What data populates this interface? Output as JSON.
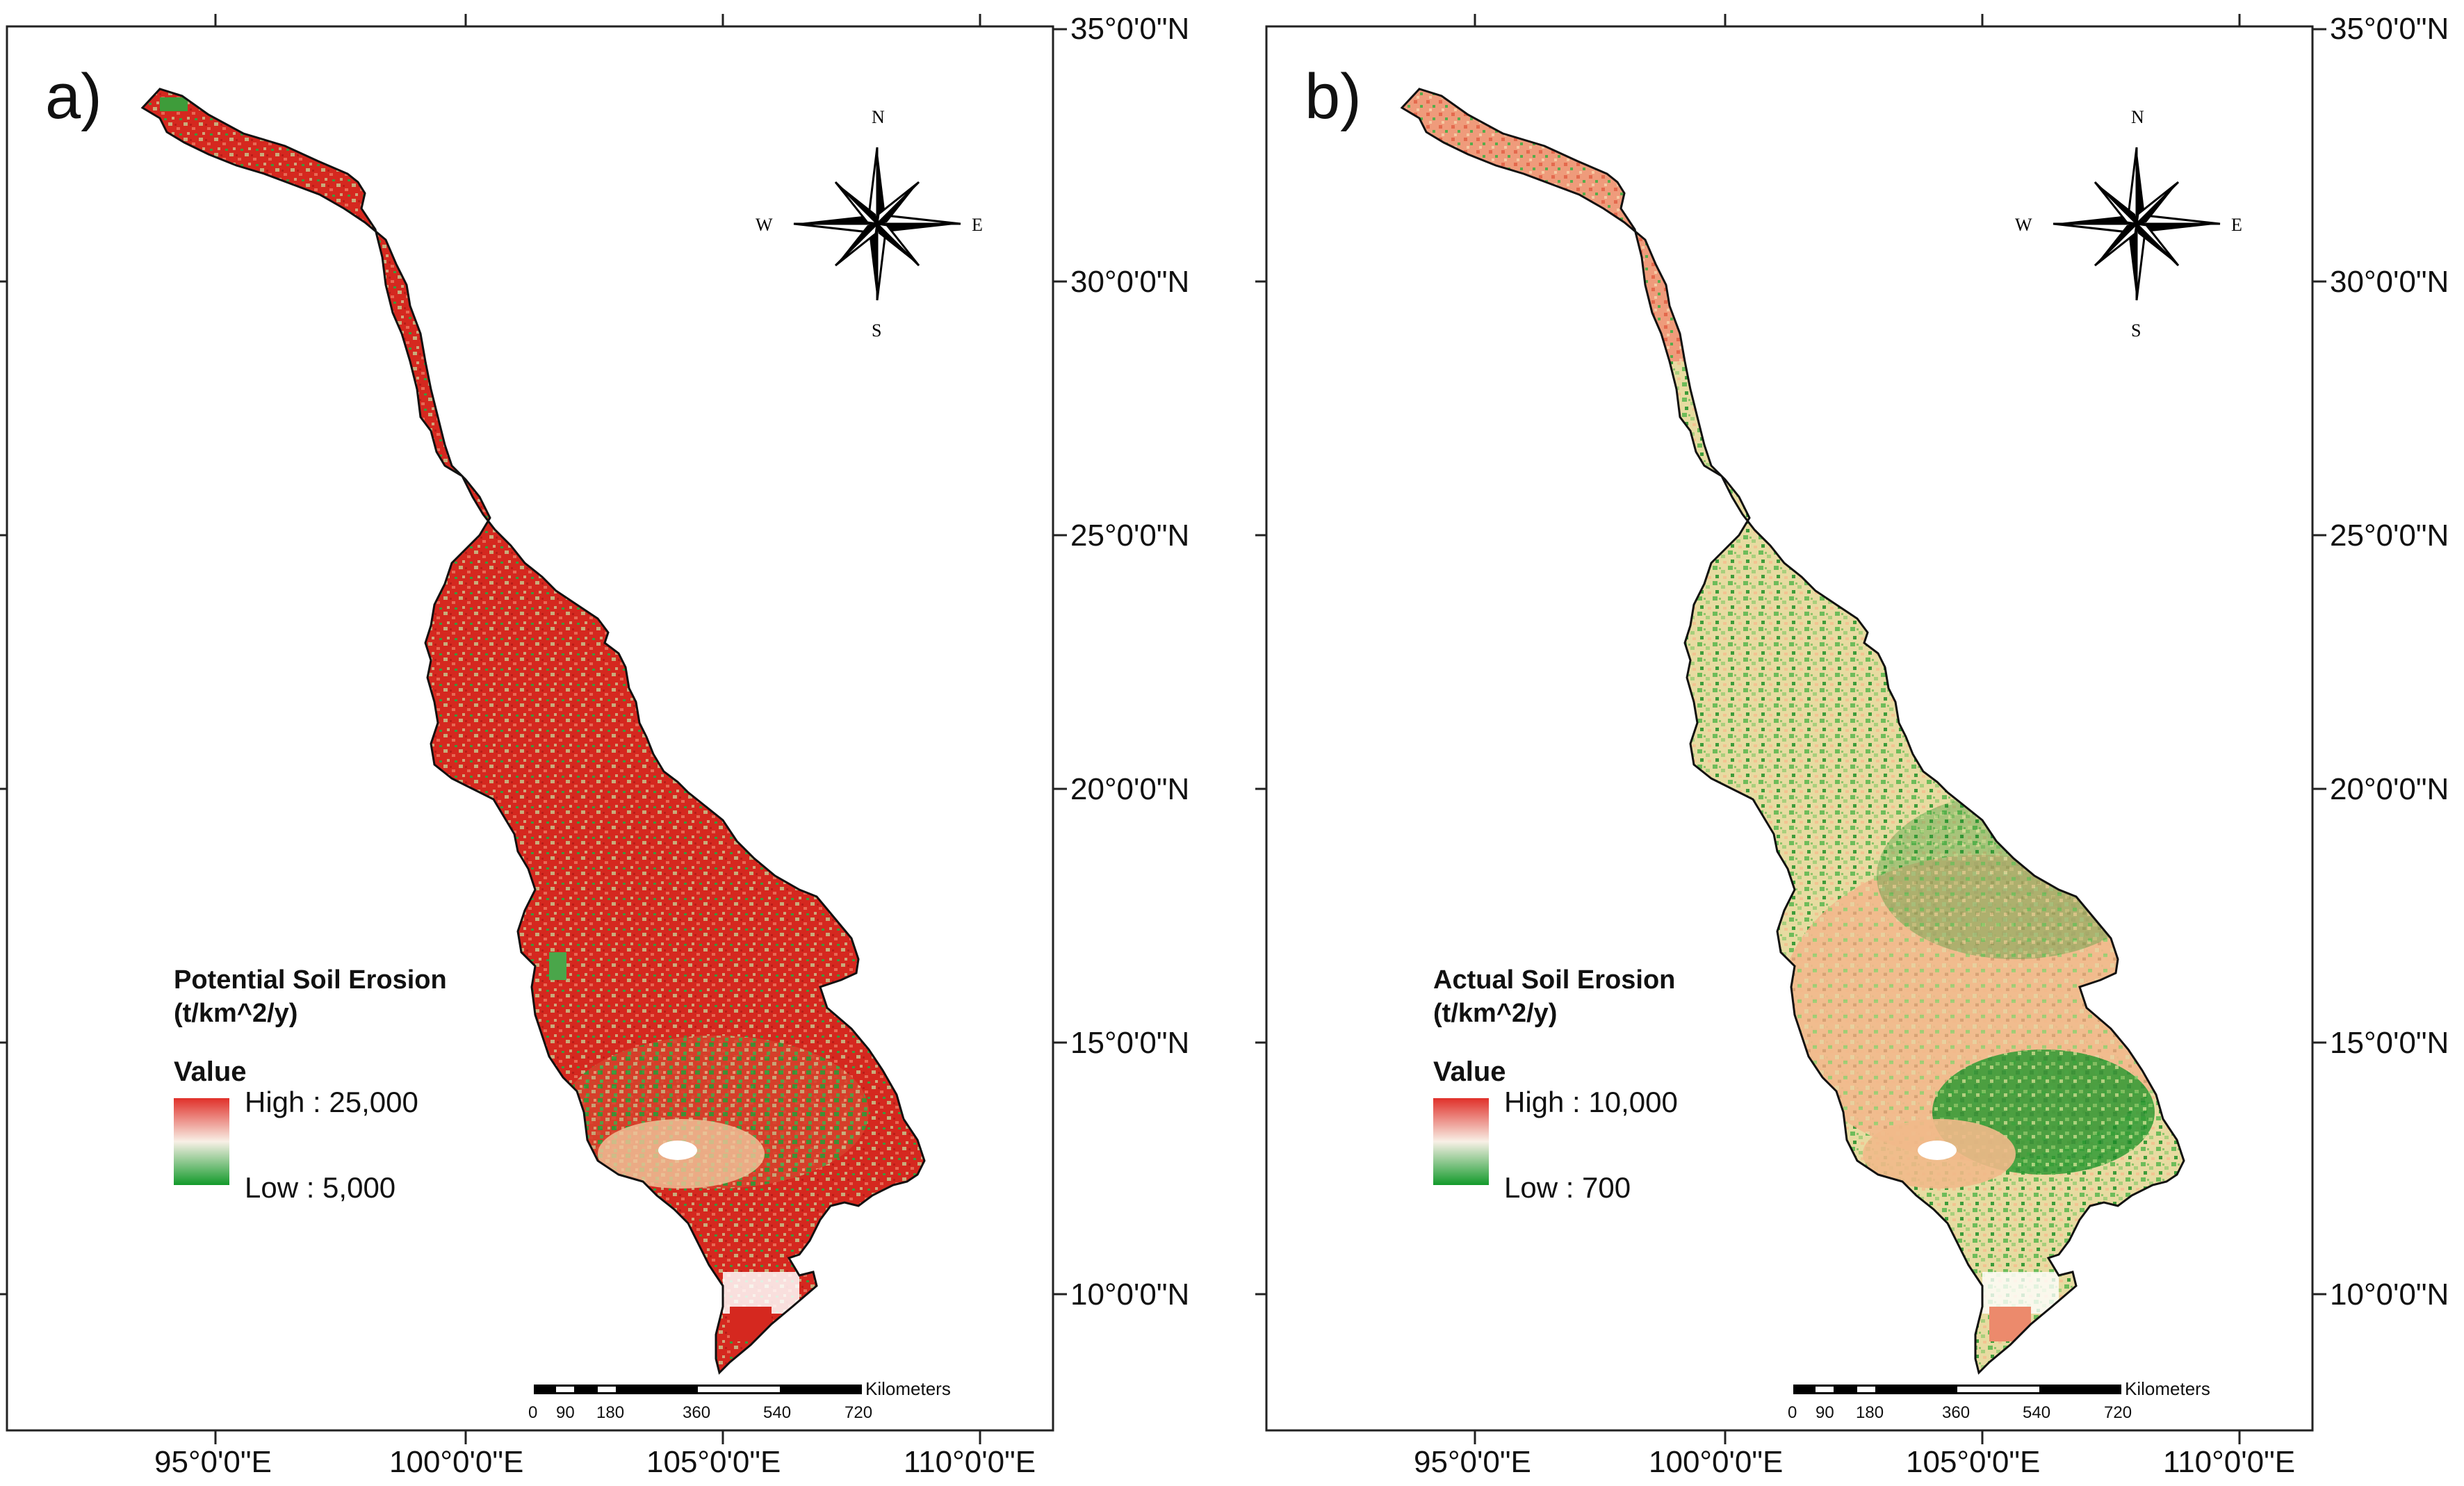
{
  "figure": {
    "panels": [
      {
        "id": "a",
        "panel_label": "a)",
        "legend": {
          "title_line1": "Potential Soil Erosion",
          "title_line2": "(t/km^2/y)",
          "value_label": "Value",
          "high_label": "High : 25,000",
          "low_label": "Low : 5,000"
        },
        "x_ticks": [
          "95°0'0\"E",
          "100°0'0\"E",
          "105°0'0\"E",
          "110°0'0\"E"
        ],
        "y_ticks": [
          "35°0'0\"N",
          "30°0'0\"N",
          "25°0'0\"N",
          "20°0'0\"N",
          "15°0'0\"N",
          "10°0'0\"N"
        ],
        "theme": "potential"
      },
      {
        "id": "b",
        "panel_label": "b)",
        "legend": {
          "title_line1": "Actual Soil Erosion",
          "title_line2": "(t/km^2/y)",
          "value_label": "Value",
          "high_label": "High : 10,000",
          "low_label": "Low : 700"
        },
        "x_ticks": [
          "95°0'0\"E",
          "100°0'0\"E",
          "105°0'0\"E",
          "110°0'0\"E"
        ],
        "y_ticks": [
          "35°0'0\"N",
          "30°0'0\"N",
          "25°0'0\"N",
          "20°0'0\"N",
          "15°0'0\"N",
          "10°0'0\"N"
        ],
        "theme": "actual"
      }
    ],
    "compass": {
      "north": "N",
      "south": "S",
      "east": "E",
      "west": "W"
    },
    "scale_bar": {
      "unit": "Kilometers",
      "labels": [
        "0",
        "90",
        "180",
        "360",
        "540",
        "720"
      ]
    },
    "colors": {
      "high": "#e0302a",
      "mid": "#f3c79a",
      "low": "#1a9a2e",
      "frame": "#222222"
    }
  }
}
